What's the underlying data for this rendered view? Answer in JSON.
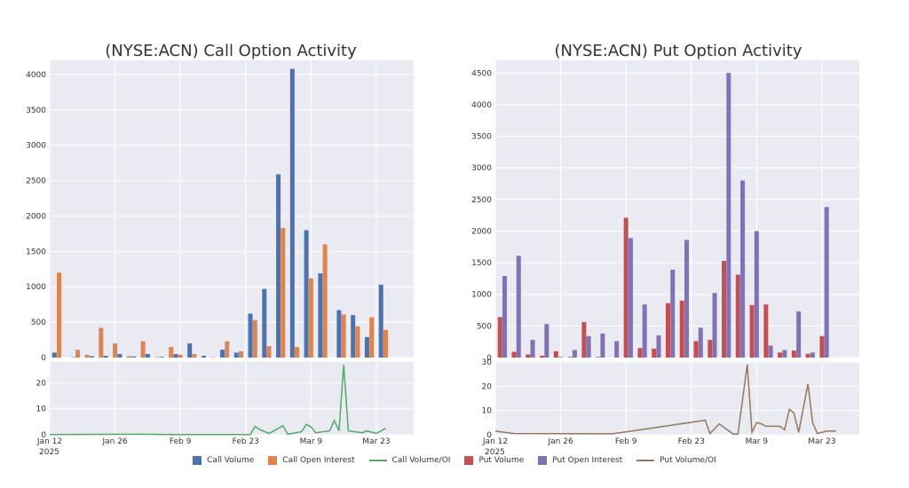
{
  "colors": {
    "call_volume": "#4c72b0",
    "call_oi": "#dd8452",
    "call_ratio": "#55a868",
    "put_volume": "#c44e52",
    "put_oi": "#8172b3",
    "put_ratio": "#937860",
    "panel_bg": "#eaeaf2"
  },
  "legend": [
    {
      "label": "Call Volume",
      "kind": "box",
      "color_key": "call_volume"
    },
    {
      "label": "Call Open Interest",
      "kind": "box",
      "color_key": "call_oi"
    },
    {
      "label": "Call Volume/OI",
      "kind": "line",
      "color_key": "call_ratio"
    },
    {
      "label": "Put Volume",
      "kind": "box",
      "color_key": "put_volume"
    },
    {
      "label": "Put Open Interest",
      "kind": "box",
      "color_key": "put_oi"
    },
    {
      "label": "Put Volume/OI",
      "kind": "line",
      "color_key": "put_ratio"
    }
  ],
  "chart_data": [
    {
      "type": "bar",
      "title": "(NYSE:ACN) Call Option Activity",
      "x_tick_labels": [
        {
          "x": 0,
          "label": "Jan 12",
          "sub": "2025"
        },
        {
          "x": 14,
          "label": "Jan 26"
        },
        {
          "x": 28,
          "label": "Feb 9"
        },
        {
          "x": 42,
          "label": "Feb 23"
        },
        {
          "x": 56,
          "label": "Mar 9"
        },
        {
          "x": 70,
          "label": "Mar 23"
        }
      ],
      "xlim": [
        0,
        78
      ],
      "ylim": [
        0,
        4200
      ],
      "yticks": [
        0,
        500,
        1000,
        1500,
        2000,
        2500,
        3000,
        3500,
        4000
      ],
      "series": [
        {
          "name": "Call Volume",
          "color_key": "call_volume",
          "values": [
            [
              1,
              70
            ],
            [
              5,
              5
            ],
            [
              9,
              20
            ],
            [
              12,
              25
            ],
            [
              15,
              50
            ],
            [
              18,
              15
            ],
            [
              21,
              50
            ],
            [
              24,
              10
            ],
            [
              27,
              50
            ],
            [
              30,
              200
            ],
            [
              33,
              25
            ],
            [
              37,
              110
            ],
            [
              40,
              70
            ],
            [
              43,
              620
            ],
            [
              46,
              970
            ],
            [
              49,
              2590
            ],
            [
              52,
              4080
            ],
            [
              55,
              1800
            ],
            [
              58,
              1190
            ],
            [
              62,
              670
            ],
            [
              65,
              600
            ],
            [
              68,
              290
            ],
            [
              71,
              1030
            ]
          ]
        },
        {
          "name": "Call Open Interest",
          "color_key": "call_oi",
          "values": [
            [
              2,
              1200
            ],
            [
              6,
              110
            ],
            [
              8,
              40
            ],
            [
              11,
              420
            ],
            [
              14,
              200
            ],
            [
              17,
              20
            ],
            [
              20,
              230
            ],
            [
              23,
              5
            ],
            [
              26,
              150
            ],
            [
              28,
              40
            ],
            [
              31,
              50
            ],
            [
              35,
              5
            ],
            [
              38,
              230
            ],
            [
              41,
              90
            ],
            [
              44,
              530
            ],
            [
              47,
              160
            ],
            [
              50,
              1830
            ],
            [
              53,
              150
            ],
            [
              56,
              1120
            ],
            [
              59,
              1600
            ],
            [
              63,
              610
            ],
            [
              66,
              440
            ],
            [
              69,
              570
            ],
            [
              72,
              390
            ]
          ]
        }
      ],
      "ratio": {
        "name": "Call Volume/OI",
        "color_key": "call_ratio",
        "ylim": [
          0,
          28
        ],
        "yticks": [
          0,
          10,
          20
        ],
        "points": [
          [
            0,
            0.1
          ],
          [
            20,
            0.2
          ],
          [
            25,
            0.1
          ],
          [
            40,
            0.1
          ],
          [
            43,
            0.1
          ],
          [
            44,
            3.2
          ],
          [
            45,
            2
          ],
          [
            47,
            0.5
          ],
          [
            50,
            3.5
          ],
          [
            51,
            0.2
          ],
          [
            52,
            0.5
          ],
          [
            54,
            1.2
          ],
          [
            55,
            4
          ],
          [
            56,
            3
          ],
          [
            57,
            0.8
          ],
          [
            60,
            1.5
          ],
          [
            61,
            5.5
          ],
          [
            62,
            1.5
          ],
          [
            63,
            27
          ],
          [
            64,
            1.5
          ],
          [
            67,
            0.8
          ],
          [
            68,
            1.5
          ],
          [
            69,
            1
          ],
          [
            70,
            0.5
          ],
          [
            72,
            2.5
          ]
        ]
      }
    },
    {
      "type": "bar",
      "title": "(NYSE:ACN) Put Option Activity",
      "x_tick_labels": [
        {
          "x": 0,
          "label": "Jan 12",
          "sub": "2025"
        },
        {
          "x": 14,
          "label": "Jan 26"
        },
        {
          "x": 28,
          "label": "Feb 9"
        },
        {
          "x": 42,
          "label": "Feb 23"
        },
        {
          "x": 56,
          "label": "Mar 9"
        },
        {
          "x": 70,
          "label": "Mar 23"
        }
      ],
      "xlim": [
        0,
        78
      ],
      "ylim": [
        0,
        4700
      ],
      "yticks": [
        0,
        500,
        1000,
        1500,
        2000,
        2500,
        3000,
        3500,
        4000,
        4500
      ],
      "series": [
        {
          "name": "Put Volume",
          "color_key": "put_volume",
          "values": [
            [
              1,
              640
            ],
            [
              4,
              90
            ],
            [
              7,
              50
            ],
            [
              10,
              30
            ],
            [
              13,
              100
            ],
            [
              16,
              10
            ],
            [
              19,
              560
            ],
            [
              22,
              10
            ],
            [
              25,
              0
            ],
            [
              28,
              2210
            ],
            [
              31,
              150
            ],
            [
              34,
              140
            ],
            [
              37,
              860
            ],
            [
              40,
              900
            ],
            [
              43,
              260
            ],
            [
              46,
              280
            ],
            [
              49,
              1530
            ],
            [
              52,
              1310
            ],
            [
              55,
              830
            ],
            [
              58,
              840
            ],
            [
              61,
              80
            ],
            [
              64,
              110
            ],
            [
              67,
              60
            ],
            [
              70,
              340
            ]
          ]
        },
        {
          "name": "Put Open Interest",
          "color_key": "put_oi",
          "values": [
            [
              2,
              1290
            ],
            [
              5,
              1610
            ],
            [
              8,
              280
            ],
            [
              11,
              530
            ],
            [
              14,
              10
            ],
            [
              17,
              120
            ],
            [
              20,
              340
            ],
            [
              23,
              380
            ],
            [
              26,
              260
            ],
            [
              29,
              1890
            ],
            [
              32,
              840
            ],
            [
              35,
              350
            ],
            [
              38,
              1390
            ],
            [
              41,
              1860
            ],
            [
              44,
              470
            ],
            [
              47,
              1020
            ],
            [
              50,
              4500
            ],
            [
              53,
              2800
            ],
            [
              56,
              2000
            ],
            [
              59,
              190
            ],
            [
              62,
              120
            ],
            [
              65,
              730
            ],
            [
              68,
              80
            ],
            [
              71,
              2380
            ]
          ]
        }
      ],
      "ratio": {
        "name": "Put Volume/OI",
        "color_key": "put_ratio",
        "ylim": [
          0,
          30
        ],
        "yticks": [
          0,
          10,
          20,
          30
        ],
        "points": [
          [
            0,
            1.5
          ],
          [
            4,
            0.5
          ],
          [
            25,
            0.4
          ],
          [
            28,
            1.2
          ],
          [
            45,
            6
          ],
          [
            46,
            0.5
          ],
          [
            48,
            4.5
          ],
          [
            49,
            3
          ],
          [
            51,
            0.3
          ],
          [
            52,
            0.3
          ],
          [
            54,
            29
          ],
          [
            55,
            1
          ],
          [
            56,
            5
          ],
          [
            57,
            4.5
          ],
          [
            58,
            3.5
          ],
          [
            61,
            3.5
          ],
          [
            62,
            2
          ],
          [
            63,
            10.5
          ],
          [
            64,
            9
          ],
          [
            65,
            1
          ],
          [
            67,
            21
          ],
          [
            68,
            5
          ],
          [
            69,
            0.5
          ],
          [
            71,
            1.5
          ],
          [
            73,
            1.5
          ]
        ]
      }
    }
  ]
}
